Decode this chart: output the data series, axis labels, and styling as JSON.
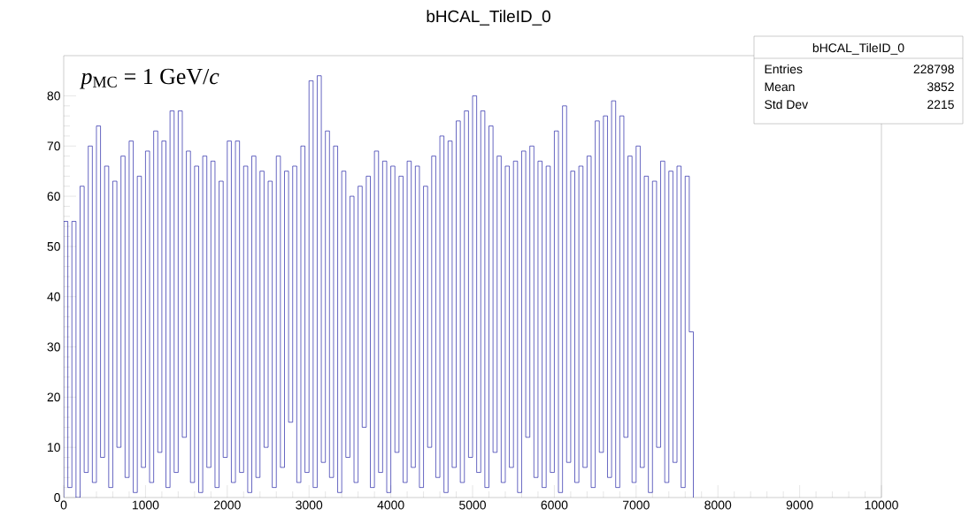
{
  "chart_data": {
    "type": "histogram",
    "title": "bHCAL_TileID_0",
    "annotations": [
      "*p*$_{MC}$ = 1 GeV/*c*",
      "bHCAL_TileID_0",
      "Entries",
      "228798",
      "Mean",
      "3852",
      "Std Dev",
      "2215"
    ],
    "bins": [
      0,
      50,
      100,
      150,
      200,
      250,
      300,
      350,
      400,
      450,
      500,
      550,
      600,
      650,
      700,
      750,
      800,
      850,
      900,
      950,
      1000,
      1050,
      1100,
      1150,
      1200,
      1250,
      1300,
      1350,
      1400,
      1450,
      1500,
      1550,
      1600,
      1650,
      1700,
      1750,
      1800,
      1850,
      1900,
      1950,
      2000,
      2050,
      2100,
      2150,
      2200,
      2250,
      2300,
      2350,
      2400,
      2450,
      2500,
      2550,
      2600,
      2650,
      2700,
      2750,
      2800,
      2850,
      2900,
      2950,
      3000,
      3050,
      3100,
      3150,
      3200,
      3250,
      3300,
      3350,
      3400,
      3450,
      3500,
      3550,
      3600,
      3650,
      3700,
      3750,
      3800,
      3850,
      3900,
      3950,
      4000,
      4050,
      4100,
      4150,
      4200,
      4250,
      4300,
      4350,
      4400,
      4450,
      4500,
      4550,
      4600,
      4650,
      4700,
      4750,
      4800,
      4850,
      4900,
      4950,
      5000,
      5050,
      5100,
      5150,
      5200,
      5250,
      5300,
      5350,
      5400,
      5450,
      5500,
      5550,
      5600,
      5650,
      5700,
      5750,
      5800,
      5850,
      5900,
      5950,
      6000,
      6050,
      6100,
      6150,
      6200,
      6250,
      6300,
      6350,
      6400,
      6450,
      6500,
      6550,
      6600,
      6650,
      6700,
      6750,
      6800,
      6850,
      6900,
      6950,
      7000,
      7050,
      7100,
      7150,
      7200,
      7250,
      7300,
      7350,
      7400,
      7450,
      7500,
      7550,
      7600,
      7650,
      7700
    ],
    "values": [
      55,
      2,
      55,
      0,
      62,
      5,
      70,
      3,
      74,
      8,
      66,
      2,
      63,
      10,
      68,
      4,
      71,
      1,
      64,
      6,
      69,
      3,
      73,
      9,
      71,
      2,
      77,
      5,
      77,
      12,
      69,
      3,
      66,
      1,
      68,
      6,
      67,
      2,
      63,
      8,
      71,
      3,
      71,
      5,
      66,
      1,
      68,
      4,
      65,
      10,
      63,
      2,
      68,
      6,
      65,
      15,
      66,
      3,
      70,
      5,
      83,
      2,
      84,
      7,
      73,
      4,
      70,
      1,
      65,
      8,
      60,
      3,
      62,
      14,
      64,
      2,
      69,
      5,
      67,
      1,
      66,
      9,
      64,
      3,
      67,
      6,
      66,
      2,
      62,
      10,
      68,
      4,
      72,
      1,
      71,
      6,
      75,
      3,
      77,
      8,
      80,
      5,
      77,
      2,
      74,
      9,
      68,
      3,
      66,
      6,
      67,
      1,
      69,
      12,
      70,
      4,
      67,
      2,
      66,
      5,
      73,
      1,
      78,
      7,
      65,
      3,
      66,
      6,
      68,
      2,
      75,
      9,
      76,
      4,
      79,
      2,
      76,
      12,
      68,
      3,
      70,
      6,
      64,
      1,
      63,
      10,
      67,
      3,
      65,
      7,
      66,
      2,
      64,
      33
    ],
    "color": "#000099",
    "xlim": [
      0,
      10000
    ],
    "xticks": [
      0,
      1000,
      2000,
      3000,
      4000,
      5000,
      6000,
      7000,
      8000,
      9000,
      10000
    ],
    "ylim": [
      0,
      88
    ],
    "yticks": [
      0,
      10,
      20,
      30,
      40,
      50,
      60,
      70,
      80
    ]
  }
}
